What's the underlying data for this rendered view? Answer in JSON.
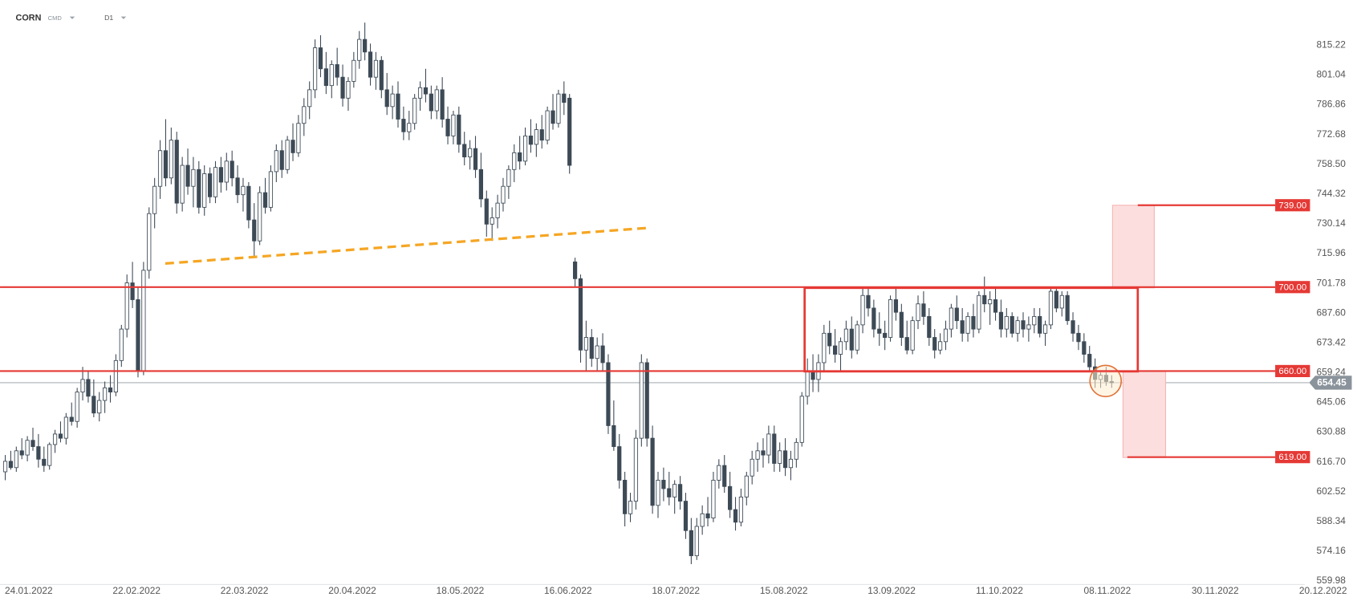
{
  "chart_data": {
    "type": "candlestick",
    "symbol": "CORN",
    "market": "CMD",
    "interval": "D1",
    "ylim": [
      558.32,
      836.77
    ],
    "yticks": [
      815.22,
      801.04,
      786.86,
      772.68,
      {
        "value": 758.5,
        "label": "758.50"
      },
      744.32,
      730.14,
      715.96,
      701.78,
      {
        "value": 687.6,
        "label": "687.60"
      },
      673.42,
      659.24,
      645.06,
      630.88,
      {
        "value": 616.7,
        "label": "616.70"
      },
      602.52,
      588.34,
      574.16,
      559.98
    ],
    "x_labels": [
      "24.01.2022",
      "22.02.2022",
      "22.03.2022",
      "20.04.2022",
      "18.05.2022",
      "16.06.2022",
      "18.07.2022",
      "15.08.2022",
      "13.09.2022",
      "11.10.2022",
      "08.11.2022",
      "30.11.2022",
      "20.12.2022"
    ],
    "up_color": "#ffffff",
    "down_color": "#3d4a56",
    "level_color": "#e53935",
    "last_color": "#8a939b",
    "price_levels": [
      {
        "value": 739,
        "label": "739.00"
      },
      {
        "value": 700,
        "label": "700.00"
      },
      {
        "value": 660,
        "label": "660.00"
      },
      {
        "value": 619,
        "label": "619.00"
      }
    ],
    "last_price": 654.45,
    "candles": [
      [
        612,
        620,
        608,
        617
      ],
      [
        617,
        622,
        613,
        614
      ],
      [
        614,
        624,
        612,
        622
      ],
      [
        622,
        628,
        618,
        620
      ],
      [
        620,
        629,
        617,
        627
      ],
      [
        627,
        633,
        622,
        624
      ],
      [
        624,
        630,
        614,
        618
      ],
      [
        618,
        624,
        612,
        615
      ],
      [
        615,
        626,
        613,
        625
      ],
      [
        625,
        632,
        621,
        630
      ],
      [
        630,
        636,
        626,
        628
      ],
      [
        628,
        640,
        625,
        638
      ],
      [
        638,
        645,
        634,
        636
      ],
      [
        636,
        652,
        633,
        650
      ],
      [
        650,
        662,
        646,
        656
      ],
      [
        656,
        660,
        645,
        648
      ],
      [
        648,
        656,
        638,
        640
      ],
      [
        640,
        650,
        636,
        646
      ],
      [
        646,
        655,
        640,
        652
      ],
      [
        652,
        658,
        645,
        650
      ],
      [
        650,
        668,
        648,
        665
      ],
      [
        665,
        682,
        662,
        680
      ],
      [
        680,
        706,
        676,
        702
      ],
      [
        702,
        712,
        690,
        694
      ],
      [
        694,
        700,
        657,
        660
      ],
      [
        660,
        712,
        658,
        708
      ],
      [
        708,
        738,
        704,
        735
      ],
      [
        735,
        752,
        728,
        748
      ],
      [
        748,
        770,
        742,
        765
      ],
      [
        765,
        780,
        748,
        752
      ],
      [
        752,
        776,
        749,
        770
      ],
      [
        770,
        774,
        735,
        740
      ],
      [
        740,
        762,
        736,
        758
      ],
      [
        758,
        766,
        744,
        748
      ],
      [
        748,
        762,
        738,
        756
      ],
      [
        756,
        760,
        735,
        738
      ],
      [
        738,
        758,
        734,
        754
      ],
      [
        754,
        757,
        740,
        743
      ],
      [
        743,
        760,
        740,
        757
      ],
      [
        757,
        762,
        745,
        750
      ],
      [
        750,
        764,
        746,
        760
      ],
      [
        760,
        765,
        748,
        752
      ],
      [
        752,
        758,
        740,
        744
      ],
      [
        744,
        752,
        736,
        748
      ],
      [
        748,
        750,
        728,
        732
      ],
      [
        732,
        740,
        714,
        722
      ],
      [
        722,
        748,
        720,
        745
      ],
      [
        745,
        752,
        735,
        738
      ],
      [
        738,
        758,
        736,
        755
      ],
      [
        755,
        768,
        750,
        765
      ],
      [
        765,
        770,
        752,
        756
      ],
      [
        756,
        772,
        754,
        770
      ],
      [
        770,
        778,
        760,
        764
      ],
      [
        764,
        782,
        762,
        778
      ],
      [
        778,
        790,
        772,
        786
      ],
      [
        786,
        798,
        780,
        794
      ],
      [
        794,
        818,
        790,
        814
      ],
      [
        814,
        820,
        800,
        804
      ],
      [
        804,
        812,
        792,
        796
      ],
      [
        796,
        808,
        790,
        806
      ],
      [
        806,
        814,
        796,
        800
      ],
      [
        800,
        806,
        786,
        790
      ],
      [
        790,
        800,
        784,
        798
      ],
      [
        798,
        812,
        795,
        808
      ],
      [
        808,
        822,
        804,
        818
      ],
      [
        818,
        826,
        808,
        812
      ],
      [
        812,
        816,
        796,
        800
      ],
      [
        800,
        812,
        794,
        808
      ],
      [
        808,
        810,
        790,
        794
      ],
      [
        794,
        802,
        782,
        786
      ],
      [
        786,
        796,
        780,
        792
      ],
      [
        792,
        798,
        776,
        780
      ],
      [
        780,
        786,
        770,
        774
      ],
      [
        774,
        784,
        770,
        778
      ],
      [
        778,
        792,
        775,
        790
      ],
      [
        790,
        798,
        784,
        795
      ],
      [
        795,
        804,
        788,
        792
      ],
      [
        792,
        796,
        780,
        784
      ],
      [
        784,
        796,
        780,
        794
      ],
      [
        794,
        800,
        776,
        780
      ],
      [
        780,
        786,
        768,
        772
      ],
      [
        772,
        784,
        768,
        782
      ],
      [
        782,
        786,
        764,
        768
      ],
      [
        768,
        774,
        758,
        762
      ],
      [
        762,
        770,
        756,
        766
      ],
      [
        766,
        772,
        752,
        756
      ],
      [
        756,
        764,
        738,
        742
      ],
      [
        742,
        746,
        724,
        730
      ],
      [
        730,
        738,
        722,
        733
      ],
      [
        733,
        744,
        728,
        740
      ],
      [
        740,
        752,
        736,
        748
      ],
      [
        748,
        758,
        742,
        756
      ],
      [
        756,
        768,
        750,
        764
      ],
      [
        764,
        772,
        756,
        760
      ],
      [
        760,
        776,
        758,
        772
      ],
      [
        772,
        780,
        764,
        768
      ],
      [
        768,
        778,
        762,
        775
      ],
      [
        775,
        782,
        766,
        770
      ],
      [
        770,
        786,
        768,
        784
      ],
      [
        784,
        792,
        775,
        778
      ],
      [
        778,
        794,
        776,
        792
      ],
      [
        792,
        798,
        782,
        788
      ],
      [
        790,
        792,
        754,
        758
      ],
      [
        712,
        714,
        700,
        704
      ],
      [
        704,
        706,
        664,
        670
      ],
      [
        670,
        684,
        660,
        676
      ],
      [
        676,
        680,
        662,
        666
      ],
      [
        666,
        676,
        660,
        672
      ],
      [
        672,
        678,
        660,
        664
      ],
      [
        664,
        668,
        630,
        634
      ],
      [
        634,
        646,
        622,
        624
      ],
      [
        624,
        630,
        604,
        608
      ],
      [
        608,
        612,
        586,
        592
      ],
      [
        592,
        602,
        588,
        598
      ],
      [
        598,
        632,
        594,
        628
      ],
      [
        628,
        668,
        624,
        664
      ],
      [
        664,
        666,
        624,
        628
      ],
      [
        628,
        634,
        592,
        596
      ],
      [
        596,
        612,
        590,
        608
      ],
      [
        608,
        614,
        598,
        604
      ],
      [
        604,
        612,
        596,
        600
      ],
      [
        600,
        608,
        592,
        606
      ],
      [
        606,
        610,
        594,
        598
      ],
      [
        598,
        602,
        580,
        584
      ],
      [
        584,
        590,
        568,
        572
      ],
      [
        572,
        590,
        570,
        586
      ],
      [
        586,
        596,
        582,
        592
      ],
      [
        592,
        600,
        586,
        590
      ],
      [
        590,
        612,
        588,
        608
      ],
      [
        608,
        618,
        604,
        615
      ],
      [
        615,
        620,
        602,
        605
      ],
      [
        605,
        612,
        590,
        594
      ],
      [
        594,
        600,
        584,
        588
      ],
      [
        588,
        604,
        586,
        600
      ],
      [
        600,
        612,
        596,
        610
      ],
      [
        610,
        622,
        606,
        618
      ],
      [
        618,
        626,
        612,
        622
      ],
      [
        622,
        628,
        614,
        620
      ],
      [
        620,
        634,
        616,
        630
      ],
      [
        630,
        634,
        612,
        616
      ],
      [
        616,
        626,
        612,
        622
      ],
      [
        622,
        628,
        610,
        614
      ],
      [
        614,
        622,
        608,
        618
      ],
      [
        618,
        628,
        614,
        626
      ],
      [
        626,
        650,
        624,
        648
      ],
      [
        648,
        666,
        644,
        660
      ],
      [
        660,
        668,
        650,
        656
      ],
      [
        656,
        668,
        650,
        664
      ],
      [
        664,
        682,
        660,
        678
      ],
      [
        678,
        684,
        668,
        672
      ],
      [
        672,
        680,
        664,
        668
      ],
      [
        668,
        676,
        660,
        674
      ],
      [
        674,
        684,
        670,
        680
      ],
      [
        680,
        686,
        666,
        670
      ],
      [
        670,
        684,
        668,
        682
      ],
      [
        682,
        700,
        678,
        696
      ],
      [
        696,
        700,
        686,
        690
      ],
      [
        690,
        694,
        676,
        680
      ],
      [
        680,
        688,
        672,
        678
      ],
      [
        678,
        684,
        670,
        676
      ],
      [
        676,
        696,
        674,
        694
      ],
      [
        694,
        700,
        684,
        688
      ],
      [
        688,
        692,
        672,
        676
      ],
      [
        676,
        684,
        668,
        670
      ],
      [
        670,
        686,
        668,
        684
      ],
      [
        684,
        696,
        680,
        692
      ],
      [
        692,
        698,
        682,
        686
      ],
      [
        686,
        690,
        672,
        676
      ],
      [
        676,
        680,
        666,
        670
      ],
      [
        670,
        678,
        668,
        674
      ],
      [
        674,
        684,
        670,
        680
      ],
      [
        680,
        692,
        676,
        690
      ],
      [
        690,
        696,
        680,
        684
      ],
      [
        684,
        690,
        674,
        678
      ],
      [
        678,
        688,
        674,
        686
      ],
      [
        686,
        692,
        676,
        680
      ],
      [
        680,
        698,
        678,
        696
      ],
      [
        696,
        705,
        688,
        692
      ],
      [
        692,
        698,
        682,
        694
      ],
      [
        694,
        700,
        684,
        688
      ],
      [
        688,
        694,
        676,
        680
      ],
      [
        680,
        690,
        676,
        686
      ],
      [
        686,
        688,
        676,
        678
      ],
      [
        678,
        686,
        674,
        684
      ],
      [
        684,
        688,
        676,
        680
      ],
      [
        680,
        686,
        674,
        682
      ],
      [
        682,
        690,
        678,
        686
      ],
      [
        686,
        690,
        676,
        678
      ],
      [
        678,
        684,
        672,
        682
      ],
      [
        682,
        700,
        680,
        698
      ],
      [
        698,
        700,
        688,
        690
      ],
      [
        690,
        698,
        686,
        696
      ],
      [
        696,
        698,
        682,
        684
      ],
      [
        684,
        688,
        674,
        678
      ],
      [
        678,
        682,
        670,
        674
      ],
      [
        674,
        678,
        664,
        668
      ],
      [
        668,
        672,
        660,
        662
      ],
      [
        662,
        666,
        652,
        656
      ],
      [
        656,
        660,
        652,
        658
      ],
      [
        658,
        662,
        653,
        655
      ],
      [
        655,
        658,
        652,
        654.45
      ]
    ]
  }
}
